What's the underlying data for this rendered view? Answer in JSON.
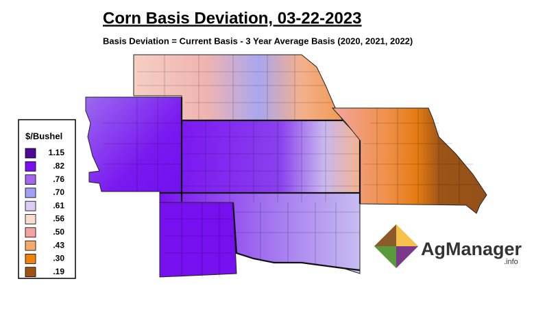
{
  "header": {
    "title": "Corn Basis Deviation, 03-22-2023",
    "subtitle": "Basis Deviation = Current Basis - 3 Year Average Basis (2020, 2021, 2022)"
  },
  "legend": {
    "title": "$/Bushel",
    "items": [
      {
        "label": "1.15",
        "color": "#4e0a96"
      },
      {
        "label": ".82",
        "color": "#7a10f0"
      },
      {
        "label": ".76",
        "color": "#a466ee"
      },
      {
        "label": ".70",
        "color": "#9fa2f2"
      },
      {
        "label": ".61",
        "color": "#dccbf2"
      },
      {
        "label": ".56",
        "color": "#f7dccd"
      },
      {
        "label": ".50",
        "color": "#f2a3a3"
      },
      {
        "label": ".43",
        "color": "#f4aa68"
      },
      {
        "label": ".30",
        "color": "#ef8208"
      },
      {
        "label": ".19",
        "color": "#9c5416"
      }
    ]
  },
  "logo": {
    "name": "AgManager",
    "suffix": ".info"
  }
}
